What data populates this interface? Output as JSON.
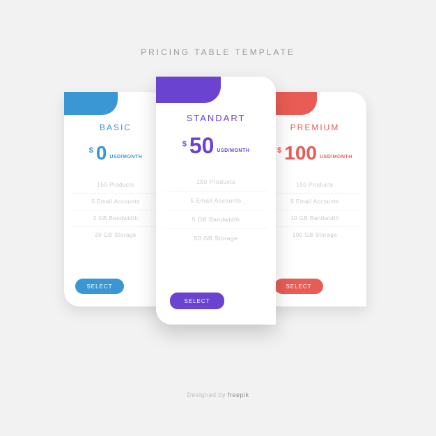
{
  "title": "PRICING TABLE TEMPLATE",
  "colors": {
    "basic": "#3a97d4",
    "standart": "#6a43d0",
    "premium": "#e95c55",
    "background": "#f2f2f2",
    "card_bg": "#ffffff",
    "feature_text": "#c9c9c9",
    "title_text": "#9a9a9a"
  },
  "plans": {
    "basic": {
      "name": "BASIC",
      "currency": "$",
      "amount": "0",
      "period": "USD/MONTH",
      "features": [
        "150 Products",
        "5 Email Accounts",
        "2 GB Bandwidth",
        "20 GB Storage"
      ],
      "button": "SELECT"
    },
    "standart": {
      "name": "STANDART",
      "currency": "$",
      "amount": "50",
      "period": "USD/MONTH",
      "features": [
        "150 Products",
        "5 Email Accounts",
        "5 GB Bandwidth",
        "50 GB Storage"
      ],
      "button": "SELECT"
    },
    "premium": {
      "name": "PREMIUM",
      "currency": "$",
      "amount": "100",
      "period": "USD/MONTH",
      "features": [
        "150 Products",
        "5 Email Accounts",
        "10 GB Bandwidth",
        "100 GB Storage"
      ],
      "button": "SELECT"
    }
  },
  "attribution": {
    "prefix": "Designed by ",
    "brand": "freepik"
  }
}
